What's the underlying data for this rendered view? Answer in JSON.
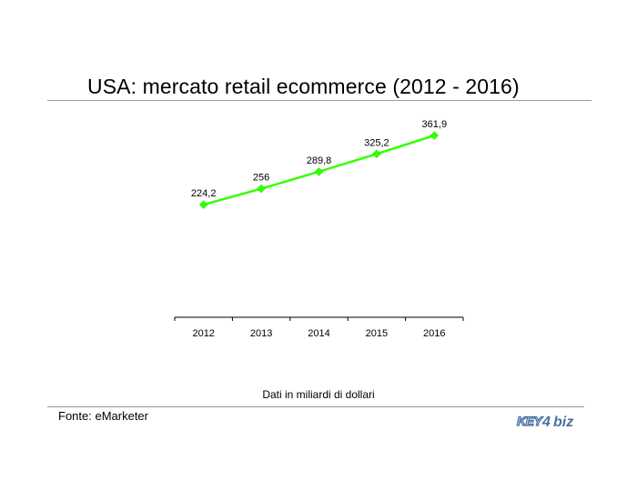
{
  "header": {
    "title": "USA: mercato retail ecommerce (2012 - 2016)"
  },
  "chart_data": {
    "type": "line",
    "categories": [
      "2012",
      "2013",
      "2014",
      "2015",
      "2016"
    ],
    "values": [
      224.2,
      256,
      289.8,
      325.2,
      361.9
    ],
    "data_labels": [
      "224,2",
      "256",
      "289,8",
      "325,2",
      "361,9"
    ],
    "title": "",
    "xlabel": "",
    "ylabel": "",
    "ylim": [
      0,
      380
    ],
    "grid": false,
    "legend": "none",
    "line_color": "#33ff00",
    "marker": "diamond"
  },
  "footer": {
    "unit_note": "Dati in miliardi di dollari",
    "source": "Fonte: eMarketer",
    "logo_text": "KEY4biz"
  },
  "colors": {
    "logo": "#4a6fa5",
    "rule": "#9a9a9a"
  }
}
